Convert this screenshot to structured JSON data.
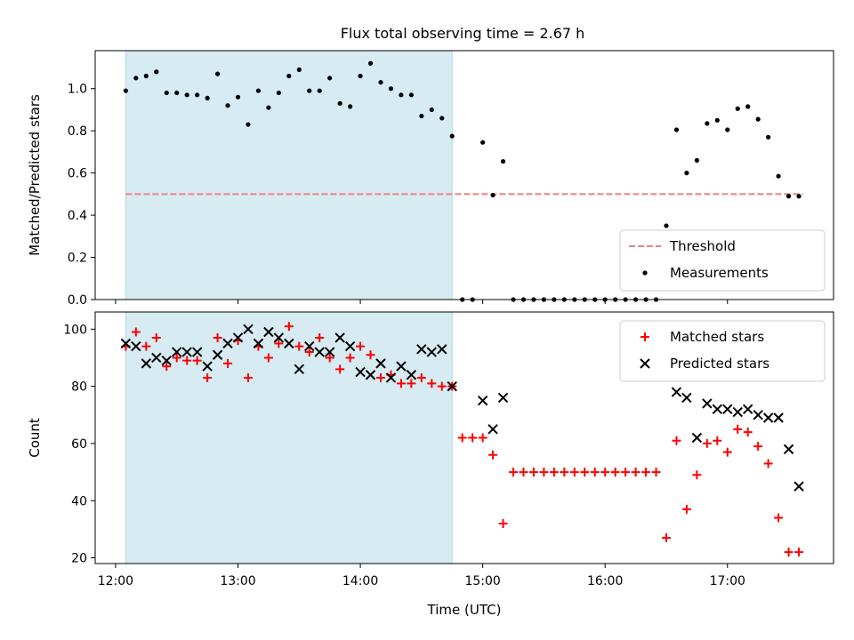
{
  "title": "Flux total observing time = 2.67 h",
  "colors": {
    "shade": "#add8e6",
    "threshold": "#f08080",
    "matched": "#ff0000",
    "predicted": "#000000",
    "measurement": "#000000"
  },
  "chart_data": [
    {
      "type": "scatter",
      "ylabel": "Matched/Predicted stars",
      "ylim": [
        0,
        1.18
      ],
      "yticks": [
        0.0,
        0.2,
        0.4,
        0.6,
        0.8,
        1.0
      ],
      "ytick_labels": [
        "0.0",
        "0.2",
        "0.4",
        "0.6",
        "0.8",
        "1.0"
      ],
      "xlim": [
        "11:50",
        "17:52"
      ],
      "shaded_span": [
        "12:05",
        "14:45"
      ],
      "threshold": {
        "name": "Threshold",
        "y": 0.5,
        "x": [
          "12:05",
          "17:37"
        ]
      },
      "legend": {
        "position": "lower-right",
        "entries": [
          "Threshold",
          "Measurements"
        ]
      },
      "series": [
        {
          "name": "Measurements",
          "x": [
            "12:05",
            "12:10",
            "12:15",
            "12:20",
            "12:25",
            "12:30",
            "12:35",
            "12:40",
            "12:45",
            "12:50",
            "12:55",
            "13:00",
            "13:05",
            "13:10",
            "13:15",
            "13:20",
            "13:25",
            "13:30",
            "13:35",
            "13:40",
            "13:45",
            "13:50",
            "13:55",
            "14:00",
            "14:05",
            "14:10",
            "14:15",
            "14:20",
            "14:25",
            "14:30",
            "14:35",
            "14:40",
            "14:45",
            "14:50",
            "14:55",
            "15:00",
            "15:05",
            "15:10",
            "15:15",
            "15:20",
            "15:25",
            "15:30",
            "15:35",
            "15:40",
            "15:45",
            "15:50",
            "15:55",
            "16:00",
            "16:05",
            "16:10",
            "16:15",
            "16:20",
            "16:25",
            "16:30",
            "16:35",
            "16:40",
            "16:45",
            "16:50",
            "16:55",
            "17:00",
            "17:05",
            "17:10",
            "17:15",
            "17:20",
            "17:25",
            "17:30",
            "17:35"
          ],
          "y": [
            0.99,
            1.05,
            1.06,
            1.08,
            0.98,
            0.98,
            0.97,
            0.97,
            0.955,
            1.07,
            0.92,
            0.96,
            0.83,
            0.99,
            0.91,
            0.98,
            1.06,
            1.09,
            0.99,
            0.99,
            1.05,
            0.93,
            0.915,
            1.06,
            1.12,
            1.03,
            1.0,
            0.97,
            0.97,
            0.87,
            0.9,
            0.86,
            0.775,
            0.0,
            0.0,
            0.745,
            0.495,
            0.655,
            0.0,
            0.0,
            0.0,
            0.0,
            0.0,
            0.0,
            0.0,
            0.0,
            0.0,
            0.0,
            0.0,
            0.0,
            0.0,
            0.0,
            0.0,
            0.35,
            0.805,
            0.6,
            0.66,
            0.835,
            0.85,
            0.805,
            0.905,
            0.915,
            0.855,
            0.77,
            0.585,
            0.49,
            0.49
          ]
        }
      ]
    },
    {
      "type": "scatter",
      "xlabel": "Time (UTC)",
      "ylabel": "Count",
      "ylim": [
        18,
        106
      ],
      "yticks": [
        20,
        40,
        60,
        80,
        100
      ],
      "ytick_labels": [
        "20",
        "40",
        "60",
        "80",
        "100"
      ],
      "xlim": [
        "11:50",
        "17:52"
      ],
      "xticks": [
        "12:00",
        "13:00",
        "14:00",
        "15:00",
        "16:00",
        "17:00"
      ],
      "xtick_labels": [
        "12:00",
        "13:00",
        "14:00",
        "15:00",
        "16:00",
        "17:00"
      ],
      "shaded_span": [
        "12:05",
        "14:45"
      ],
      "legend": {
        "position": "top-right",
        "entries": [
          "Matched stars",
          "Predicted stars"
        ]
      },
      "series": [
        {
          "name": "Matched stars",
          "marker": "plus",
          "x": [
            "12:05",
            "12:10",
            "12:15",
            "12:20",
            "12:25",
            "12:30",
            "12:35",
            "12:40",
            "12:45",
            "12:50",
            "12:55",
            "13:00",
            "13:05",
            "13:10",
            "13:15",
            "13:20",
            "13:25",
            "13:30",
            "13:35",
            "13:40",
            "13:45",
            "13:50",
            "13:55",
            "14:00",
            "14:05",
            "14:10",
            "14:15",
            "14:20",
            "14:25",
            "14:30",
            "14:35",
            "14:40",
            "14:45",
            "14:50",
            "14:55",
            "15:00",
            "15:05",
            "15:10",
            "15:15",
            "15:20",
            "15:25",
            "15:30",
            "15:35",
            "15:40",
            "15:45",
            "15:50",
            "15:55",
            "16:00",
            "16:05",
            "16:10",
            "16:15",
            "16:20",
            "16:25",
            "16:30",
            "16:35",
            "16:40",
            "16:45",
            "16:50",
            "16:55",
            "17:00",
            "17:05",
            "17:10",
            "17:15",
            "17:20",
            "17:25",
            "17:30",
            "17:35"
          ],
          "y": [
            94,
            99,
            94,
            97,
            87,
            90,
            89,
            89,
            83,
            97,
            88,
            96,
            83,
            94,
            90,
            95,
            101,
            94,
            92,
            97,
            90,
            86,
            90,
            94,
            91,
            83,
            84,
            81,
            81,
            83,
            81,
            80,
            80,
            62,
            62,
            62,
            56,
            32,
            50,
            50,
            50,
            50,
            50,
            50,
            50,
            50,
            50,
            50,
            50,
            50,
            50,
            50,
            50,
            27,
            61,
            37,
            49,
            60,
            61,
            57,
            65,
            64,
            59,
            53,
            34,
            22,
            22
          ]
        },
        {
          "name": "Predicted stars",
          "marker": "x",
          "x": [
            "12:05",
            "12:10",
            "12:15",
            "12:20",
            "12:25",
            "12:30",
            "12:35",
            "12:40",
            "12:45",
            "12:50",
            "12:55",
            "13:00",
            "13:05",
            "13:10",
            "13:15",
            "13:20",
            "13:25",
            "13:30",
            "13:35",
            "13:40",
            "13:45",
            "13:50",
            "13:55",
            "14:00",
            "14:05",
            "14:10",
            "14:15",
            "14:20",
            "14:25",
            "14:30",
            "14:35",
            "14:40",
            "14:45",
            "15:00",
            "15:05",
            "15:10",
            "16:35",
            "16:40",
            "16:45",
            "16:50",
            "16:55",
            "17:00",
            "17:05",
            "17:10",
            "17:15",
            "17:20",
            "17:25",
            "17:30",
            "17:35"
          ],
          "y": [
            95,
            94,
            88,
            90,
            89,
            92,
            92,
            92,
            87,
            91,
            95,
            97,
            100,
            95,
            99,
            97,
            95,
            86,
            94,
            92,
            92,
            97,
            94,
            85,
            84,
            88,
            83,
            87,
            84,
            93,
            92,
            93,
            80,
            75,
            65,
            76,
            78,
            76,
            62,
            74,
            72,
            72,
            71,
            72,
            70,
            69,
            69,
            58,
            45
          ]
        }
      ]
    }
  ]
}
